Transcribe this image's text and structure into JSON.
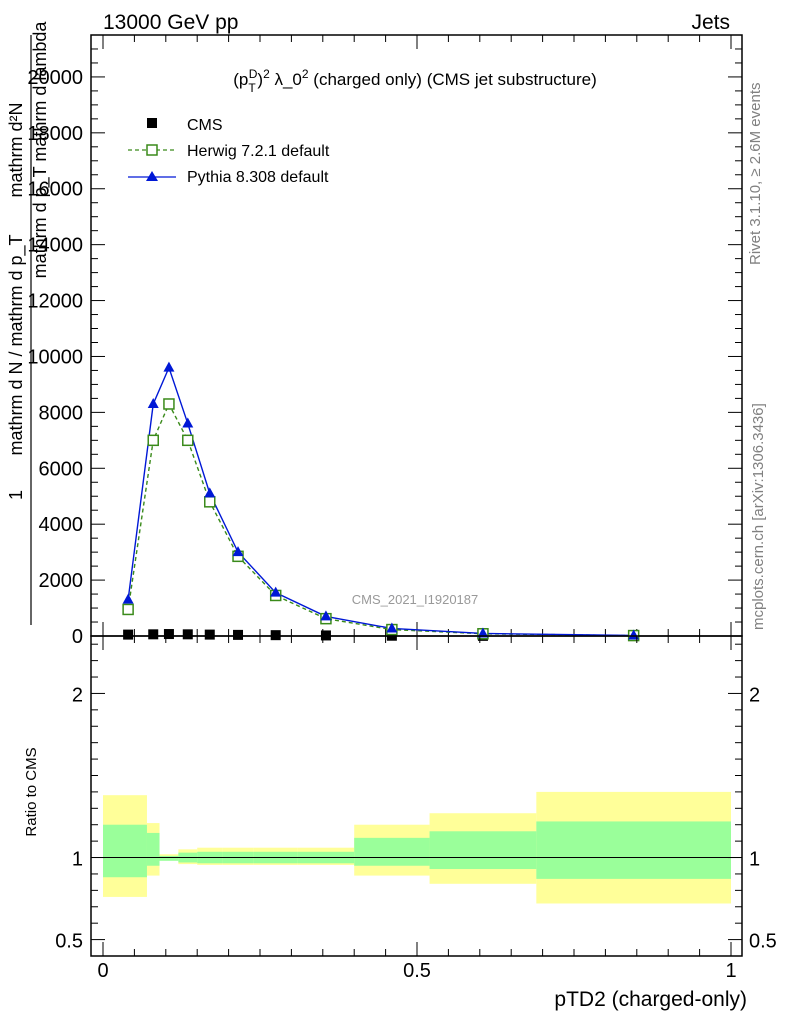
{
  "header": {
    "left": "13000 GeV pp",
    "right": "Jets"
  },
  "side_labels": {
    "rivet": "Rivet 3.1.10, ≥ 2.6M events",
    "mcplots": "mcplots.cern.ch [arXiv:1306.3436]"
  },
  "chart_data": [
    {
      "type": "line",
      "title_parts": {
        "p": "(p",
        "T": "T",
        "D": "D",
        "sup2": "2",
        "lambda": " λ_0",
        "sup2b": "2",
        "rest": " (charged only) (CMS jet substructure)"
      },
      "watermark": "CMS_2021_I1920187",
      "ylabel_parts": {
        "top": "mathrm d²N",
        "bottom": "mathrm d p_T mathrm d lambda",
        "prefix": "1",
        "denominator": "mathrm d N / mathrm d p_T"
      },
      "ylim": [
        0,
        21500
      ],
      "yticks": [
        0,
        2000,
        4000,
        6000,
        8000,
        10000,
        12000,
        14000,
        16000,
        18000,
        20000
      ],
      "ytick_labels": [
        "0",
        "2000",
        "4000",
        "6000",
        "8000",
        "10000",
        "12000",
        "14000",
        "16000",
        "18000",
        "20000"
      ],
      "xlim": [
        -0.02,
        1.02
      ],
      "legend_position": "top-left",
      "series": [
        {
          "name": "CMS",
          "color": "#000000",
          "marker": "square-filled",
          "x": [
            0.04,
            0.08,
            0.105,
            0.135,
            0.17,
            0.215,
            0.275,
            0.355,
            0.46,
            0.605,
            0.845
          ],
          "y": [
            50,
            60,
            70,
            60,
            50,
            40,
            30,
            20,
            10,
            5,
            2
          ]
        },
        {
          "name": "Herwig 7.2.1 default",
          "color": "#3a8a1a",
          "marker": "square-open",
          "dashed": true,
          "x": [
            0.04,
            0.08,
            0.105,
            0.135,
            0.17,
            0.215,
            0.275,
            0.355,
            0.46,
            0.605,
            0.845
          ],
          "y": [
            950,
            7000,
            8300,
            7000,
            4800,
            2850,
            1450,
            620,
            230,
            80,
            15
          ]
        },
        {
          "name": "Pythia 8.308 default",
          "color": "#0018d6",
          "marker": "triangle-filled",
          "dashed": false,
          "x": [
            0.04,
            0.08,
            0.105,
            0.135,
            0.17,
            0.215,
            0.275,
            0.355,
            0.46,
            0.605,
            0.845
          ],
          "y": [
            1300,
            8300,
            9600,
            7600,
            5100,
            3000,
            1550,
            700,
            270,
            90,
            18
          ]
        }
      ]
    },
    {
      "type": "area",
      "ylabel": "Ratio to CMS",
      "ylim": [
        0.4,
        2.35
      ],
      "yticks": [
        0.5,
        1,
        2
      ],
      "ytick_labels": [
        "0.5",
        "1",
        "2"
      ],
      "xlim": [
        -0.02,
        1.02
      ],
      "xticks": [
        0,
        0.5,
        1
      ],
      "xtick_labels": [
        "0",
        "0.5",
        "1"
      ],
      "xlabel": "pTD2 (charged-only)",
      "bands": {
        "edges": [
          0,
          0.07,
          0.09,
          0.12,
          0.15,
          0.19,
          0.24,
          0.31,
          0.4,
          0.52,
          0.69,
          1.0
        ],
        "inner_lo": [
          0.88,
          0.95,
          0.98,
          0.97,
          0.965,
          0.965,
          0.965,
          0.965,
          0.95,
          0.93,
          0.87
        ],
        "inner_hi": [
          1.2,
          1.15,
          1.01,
          1.03,
          1.035,
          1.035,
          1.035,
          1.035,
          1.12,
          1.16,
          1.22
        ],
        "outer_lo": [
          0.76,
          0.89,
          0.985,
          0.96,
          0.955,
          0.955,
          0.955,
          0.955,
          0.89,
          0.84,
          0.72
        ],
        "outer_hi": [
          1.38,
          1.21,
          1.02,
          1.05,
          1.06,
          1.06,
          1.06,
          1.06,
          1.2,
          1.27,
          1.4
        ],
        "inner_color": "#9aff9a",
        "outer_color": "#ffff99"
      },
      "reference_line": 1
    }
  ]
}
